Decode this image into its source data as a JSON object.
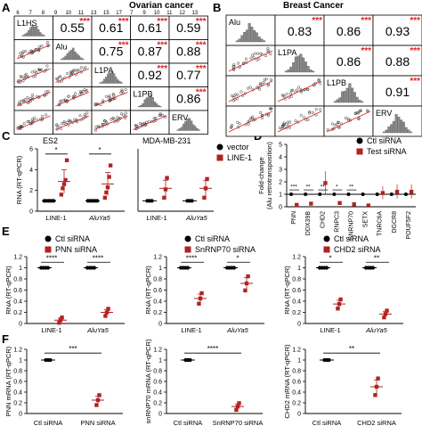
{
  "panels": {
    "A": {
      "letter": "A",
      "title": "Ovarian cancer",
      "vars": [
        "L1HS",
        "Alu",
        "L1PA",
        "L1PB",
        "ERV"
      ],
      "corr": [
        [
          "0.55",
          "0.61",
          "0.61",
          "0.59"
        ],
        [
          "0.75",
          "0.87",
          "0.88"
        ],
        [
          "0.92",
          "0.77"
        ],
        [
          "0.86"
        ]
      ],
      "top_ticks": [
        "6",
        "7",
        "8",
        "9",
        "10",
        "11",
        "13",
        "15",
        "17",
        "7",
        "9",
        "10",
        "11",
        "12",
        "13"
      ]
    },
    "B": {
      "letter": "B",
      "title": "Breast Cancer",
      "vars": [
        "Alu",
        "L1PA",
        "L1PB",
        "ERV"
      ],
      "corr": [
        [
          "0.83",
          "0.86",
          "0.93"
        ],
        [
          "0.86",
          "0.88"
        ],
        [
          "0.91"
        ]
      ]
    },
    "C": {
      "letter": "C",
      "ylabel": "RNA (RT-qPCR)",
      "sub1": "ES2",
      "sub2": "MDA-MB-231",
      "legend": [
        "vector",
        "LINE-1"
      ],
      "sig": [
        "*",
        "*"
      ]
    },
    "D": {
      "letter": "D",
      "ylabel": "Fold-change\n(Alu retrotransposition)",
      "legend": [
        "Ctl siRNA",
        "Test siRNA"
      ],
      "sig": [
        "***",
        "**",
        "**",
        "*",
        "**"
      ]
    },
    "E": {
      "letter": "E",
      "ylabel": "RNA (RT-qPCR)",
      "legend1": [
        "Ctl siRNA",
        "PNN siRNA"
      ],
      "legend2": [
        "Ctl siRNA",
        "SnRNP70 siRNA"
      ],
      "legend3": [
        "Ctl siRNA",
        "CHD2 siRNA"
      ],
      "sig1": [
        "****",
        "****"
      ],
      "sig2": [
        "****",
        "*"
      ],
      "sig3": [
        "*",
        "**"
      ]
    },
    "F": {
      "letter": "F",
      "ylabel1": "PNN mRNA (RT-qPCR)",
      "ylabel2": "snRNP70 mRNA (RT-qPCR)",
      "ylabel3": "CHD2 mRNA (RT-qPCR)",
      "sig": [
        "***",
        "****",
        "**"
      ]
    }
  },
  "colors": {
    "ctl": "#000000",
    "test": "#b22222",
    "sig_red": "#e02020",
    "hist": "#8a8a8a"
  },
  "chart_data": [
    {
      "type": "scatter",
      "panel": "C-ES2",
      "categories": [
        "LINE-1",
        "AluYa5"
      ],
      "ylim": [
        0,
        6
      ],
      "series": [
        {
          "name": "vector",
          "values": [
            [
              1,
              1,
              1,
              1,
              1
            ],
            [
              1,
              1,
              1,
              1,
              1
            ]
          ]
        },
        {
          "name": "LINE-1",
          "values": [
            [
              1.6,
              2.2,
              2.6,
              3.0,
              4.9
            ],
            [
              1.3,
              1.8,
              2.3,
              3.3,
              4.4
            ]
          ]
        }
      ]
    },
    {
      "type": "scatter",
      "panel": "C-MDA-MB-231",
      "categories": [
        "LINE-1",
        "AluYa5"
      ],
      "ylim": [
        0,
        6
      ],
      "series": [
        {
          "name": "vector",
          "values": [
            [
              1,
              1,
              1
            ],
            [
              1,
              1,
              1
            ]
          ]
        },
        {
          "name": "LINE-1",
          "values": [
            [
              1.3,
              2.1,
              3.2
            ],
            [
              1.3,
              2.2,
              3.1
            ]
          ]
        }
      ]
    },
    {
      "type": "scatter",
      "panel": "D",
      "ylim": [
        0,
        5
      ],
      "categories": [
        "PNN",
        "DDX39B",
        "CHD2",
        "RNPC3",
        "SNRNP70",
        "SETX",
        "TNRC6A",
        "DGCR8",
        "POUF5F2"
      ],
      "series": [
        {
          "name": "Ctl siRNA",
          "values": [
            1,
            1,
            1,
            1,
            1,
            1,
            1,
            1,
            1
          ]
        },
        {
          "name": "Test siRNA",
          "values": [
            0.15,
            0.25,
            1.9,
            0.3,
            0.2,
            0.1,
            1.1,
            1.2,
            1.2
          ]
        }
      ]
    },
    {
      "type": "scatter",
      "panel": "E-PNN",
      "categories": [
        "LINE-1",
        "AluYa5"
      ],
      "ylim": [
        0,
        1.2
      ],
      "series": [
        {
          "name": "Ctl siRNA",
          "values": [
            1,
            1
          ]
        },
        {
          "name": "PNN siRNA",
          "values": [
            0.06,
            0.2
          ]
        }
      ]
    },
    {
      "type": "scatter",
      "panel": "E-SnRNP70",
      "categories": [
        "LINE-1",
        "AluYa5"
      ],
      "ylim": [
        0,
        1.2
      ],
      "series": [
        {
          "name": "Ctl siRNA",
          "values": [
            1,
            1
          ]
        },
        {
          "name": "SnRNP70 siRNA",
          "values": [
            0.45,
            0.72
          ]
        }
      ]
    },
    {
      "type": "scatter",
      "panel": "E-CHD2",
      "categories": [
        "LINE-1",
        "AluYa5"
      ],
      "ylim": [
        0,
        1.2
      ],
      "series": [
        {
          "name": "Ctl siRNA",
          "values": [
            1,
            1
          ]
        },
        {
          "name": "CHD2 siRNA",
          "values": [
            0.35,
            0.17
          ]
        }
      ]
    },
    {
      "type": "scatter",
      "panel": "F-PNN",
      "categories": [
        "Ctl siRNA",
        "PNN siRNA"
      ],
      "ylim": [
        0,
        1.2
      ],
      "values": [
        1,
        0.25
      ]
    },
    {
      "type": "scatter",
      "panel": "F-snRNP70",
      "categories": [
        "Ctl siRNA",
        "SnRNP70 siRNA"
      ],
      "ylim": [
        0,
        1.2
      ],
      "values": [
        1,
        0.13
      ]
    },
    {
      "type": "scatter",
      "panel": "F-CHD2",
      "categories": [
        "Ctl siRNA",
        "CHD2 siRNA"
      ],
      "ylim": [
        0,
        1.2
      ],
      "values": [
        1,
        0.5
      ]
    }
  ]
}
